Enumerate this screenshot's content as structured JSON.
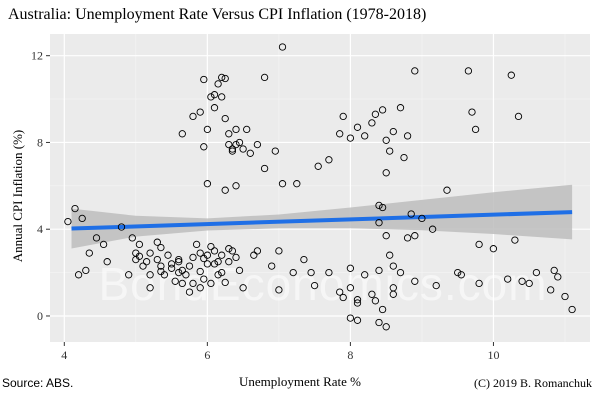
{
  "chart_data": {
    "type": "scatter",
    "title": "Australia: Unemployment Rate Versus CPI Inflation (1978-2018)",
    "xlabel": "Unemployment Rate %",
    "ylabel": "Annual CPI Inflation (%)",
    "xlim": [
      3.8,
      11.35
    ],
    "ylim": [
      -1.2,
      13.0
    ],
    "xticks": [
      4,
      6,
      8,
      10
    ],
    "yticks": [
      0,
      4,
      8,
      12
    ],
    "grid": true,
    "legend": "none",
    "watermark": "BondEconomics.com",
    "points_color": "#000000",
    "points": [
      [
        4.05,
        4.35
      ],
      [
        4.15,
        4.95
      ],
      [
        4.25,
        4.5
      ],
      [
        4.2,
        1.9
      ],
      [
        4.3,
        2.1
      ],
      [
        4.35,
        2.9
      ],
      [
        4.45,
        3.6
      ],
      [
        4.55,
        3.3
      ],
      [
        4.6,
        2.5
      ],
      [
        4.8,
        4.1
      ],
      [
        4.95,
        3.6
      ],
      [
        5.0,
        2.9
      ],
      [
        5.0,
        2.6
      ],
      [
        5.05,
        3.3
      ],
      [
        5.05,
        2.75
      ],
      [
        5.1,
        2.3
      ],
      [
        5.15,
        2.5
      ],
      [
        5.2,
        2.9
      ],
      [
        5.2,
        1.3
      ],
      [
        5.3,
        2.6
      ],
      [
        5.35,
        3.15
      ],
      [
        5.35,
        2.3
      ],
      [
        5.4,
        1.9
      ],
      [
        5.45,
        2.8
      ],
      [
        5.5,
        2.4
      ],
      [
        5.6,
        2.5
      ],
      [
        5.65,
        2.1
      ],
      [
        5.7,
        1.9
      ],
      [
        5.75,
        1.1
      ],
      [
        5.8,
        1.5
      ],
      [
        5.6,
        2.0
      ],
      [
        5.55,
        1.6
      ],
      [
        5.5,
        2.2
      ],
      [
        5.65,
        1.5
      ],
      [
        5.75,
        2.3
      ],
      [
        5.8,
        2.7
      ],
      [
        5.9,
        1.3
      ],
      [
        5.9,
        2.05
      ],
      [
        5.95,
        1.7
      ],
      [
        6.0,
        2.4
      ],
      [
        6.05,
        1.5
      ],
      [
        6.05,
        3.2
      ],
      [
        6.1,
        3.0
      ],
      [
        6.15,
        2.5
      ],
      [
        6.2,
        2.0
      ],
      [
        6.25,
        1.55
      ],
      [
        6.3,
        3.1
      ],
      [
        6.35,
        3.0
      ],
      [
        6.4,
        2.7
      ],
      [
        6.45,
        2.1
      ],
      [
        6.5,
        1.3
      ],
      [
        5.9,
        2.9
      ],
      [
        5.95,
        2.65
      ],
      [
        6.0,
        2.8
      ],
      [
        6.1,
        2.4
      ],
      [
        6.15,
        1.9
      ],
      [
        6.2,
        2.8
      ],
      [
        5.85,
        3.3
      ],
      [
        5.3,
        3.4
      ],
      [
        6.7,
        3.0
      ],
      [
        6.65,
        2.8
      ],
      [
        6.9,
        2.3
      ],
      [
        7.0,
        1.2
      ],
      [
        7.2,
        2.0
      ],
      [
        7.45,
        2.0
      ],
      [
        7.5,
        1.4
      ],
      [
        7.85,
        1.1
      ],
      [
        8.0,
        1.3
      ],
      [
        8.1,
        0.75
      ],
      [
        8.3,
        1.0
      ],
      [
        7.9,
        0.85
      ],
      [
        8.1,
        0.6
      ],
      [
        8.35,
        0.7
      ],
      [
        8.6,
        1.3
      ],
      [
        8.6,
        1.0
      ],
      [
        8.9,
        1.6
      ],
      [
        9.2,
        1.4
      ],
      [
        9.5,
        2.0
      ],
      [
        9.8,
        1.5
      ],
      [
        10.2,
        1.7
      ],
      [
        10.5,
        1.5
      ],
      [
        10.8,
        1.2
      ],
      [
        10.9,
        1.8
      ],
      [
        11.0,
        0.9
      ],
      [
        5.65,
        8.4
      ],
      [
        5.8,
        9.2
      ],
      [
        5.9,
        9.4
      ],
      [
        6.0,
        8.6
      ],
      [
        5.95,
        7.8
      ],
      [
        6.05,
        10.1
      ],
      [
        6.1,
        9.6
      ],
      [
        6.2,
        10.1
      ],
      [
        6.25,
        9.1
      ],
      [
        6.3,
        8.4
      ],
      [
        6.35,
        7.7
      ],
      [
        6.4,
        8.6
      ],
      [
        6.5,
        7.7
      ],
      [
        6.55,
        8.6
      ],
      [
        6.6,
        7.5
      ],
      [
        6.2,
        11.0
      ],
      [
        6.15,
        10.7
      ],
      [
        6.1,
        10.2
      ],
      [
        5.95,
        10.9
      ],
      [
        6.25,
        10.95
      ],
      [
        6.3,
        7.9
      ],
      [
        6.35,
        7.6
      ],
      [
        6.4,
        7.9
      ],
      [
        6.45,
        8.0
      ],
      [
        6.7,
        7.9
      ],
      [
        6.8,
        11.0
      ],
      [
        6.0,
        6.1
      ],
      [
        6.25,
        5.8
      ],
      [
        6.4,
        6.0
      ],
      [
        6.8,
        6.8
      ],
      [
        6.95,
        7.6
      ],
      [
        7.05,
        6.1
      ],
      [
        7.25,
        6.1
      ],
      [
        7.55,
        6.9
      ],
      [
        7.7,
        7.2
      ],
      [
        7.85,
        8.4
      ],
      [
        7.9,
        9.2
      ],
      [
        8.0,
        8.2
      ],
      [
        8.1,
        8.7
      ],
      [
        8.2,
        8.3
      ],
      [
        8.3,
        8.9
      ],
      [
        8.35,
        9.3
      ],
      [
        8.45,
        9.5
      ],
      [
        8.5,
        8.1
      ],
      [
        8.55,
        7.6
      ],
      [
        8.6,
        8.5
      ],
      [
        8.7,
        9.6
      ],
      [
        8.75,
        7.3
      ],
      [
        8.8,
        8.3
      ],
      [
        8.9,
        11.3
      ],
      [
        8.85,
        4.7
      ],
      [
        8.8,
        3.6
      ],
      [
        8.9,
        3.7
      ],
      [
        9.0,
        4.5
      ],
      [
        9.15,
        4.0
      ],
      [
        9.35,
        5.8
      ],
      [
        9.65,
        11.3
      ],
      [
        9.7,
        9.4
      ],
      [
        9.75,
        8.6
      ],
      [
        9.8,
        3.3
      ],
      [
        10.0,
        3.1
      ],
      [
        10.25,
        11.1
      ],
      [
        10.3,
        3.5
      ],
      [
        10.35,
        9.2
      ],
      [
        10.6,
        2.0
      ],
      [
        10.85,
        2.1
      ],
      [
        11.1,
        0.3
      ],
      [
        7.05,
        12.4
      ],
      [
        8.4,
        5.1
      ],
      [
        8.45,
        5.0
      ],
      [
        8.5,
        6.6
      ],
      [
        8.4,
        4.3
      ],
      [
        8.5,
        3.7
      ],
      [
        8.55,
        2.8
      ],
      [
        8.6,
        2.3
      ],
      [
        8.7,
        2.0
      ],
      [
        8.0,
        -0.1
      ],
      [
        8.1,
        -0.2
      ],
      [
        8.4,
        -0.3
      ],
      [
        8.45,
        0.3
      ],
      [
        8.5,
        -0.5
      ],
      [
        8.2,
        1.9
      ],
      [
        8.4,
        2.1
      ],
      [
        9.55,
        1.9
      ],
      [
        10.4,
        1.6
      ],
      [
        5.2,
        1.9
      ],
      [
        4.9,
        1.9
      ],
      [
        5.35,
        2.05
      ],
      [
        5.6,
        2.6
      ],
      [
        6.3,
        2.5
      ],
      [
        7.0,
        3.0
      ],
      [
        7.35,
        2.6
      ],
      [
        7.7,
        2.0
      ],
      [
        8.0,
        2.2
      ]
    ],
    "fit_line": {
      "x": [
        4.1,
        11.1
      ],
      "y": [
        4.03,
        4.79
      ],
      "color": "#1f6fe6"
    },
    "confidence_band": {
      "x": [
        4.1,
        5.0,
        6.0,
        7.0,
        8.0,
        9.0,
        10.0,
        11.1
      ],
      "upper": [
        4.95,
        4.62,
        4.5,
        4.68,
        5.0,
        5.35,
        5.7,
        6.05
      ],
      "lower": [
        3.11,
        3.66,
        3.94,
        4.04,
        4.04,
        3.95,
        3.78,
        3.53
      ],
      "color": "#bdbdbd"
    }
  },
  "footer": {
    "source": "Source: ABS.",
    "copyright": "(C) 2019 B. Romanchuk"
  }
}
